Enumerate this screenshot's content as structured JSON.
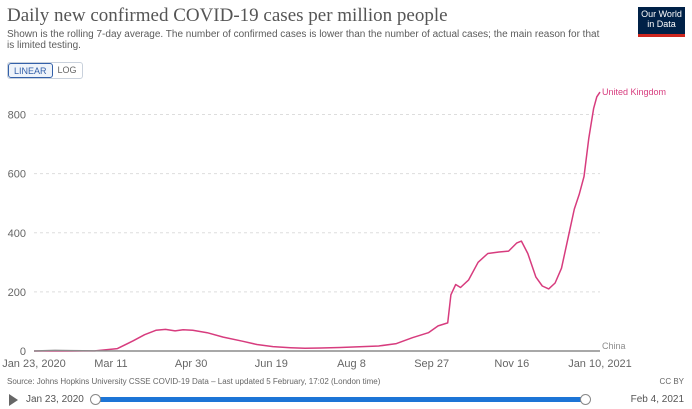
{
  "header": {
    "title": "Daily new confirmed COVID-19 cases per million people",
    "subtitle": "Shown is the rolling 7-day average. The number of confirmed cases is lower than the number of actual cases; the main reason for that is limited testing.",
    "logo_line1": "Our World",
    "logo_line2": "in Data"
  },
  "scale_toggle": {
    "linear_label": "LINEAR",
    "log_label": "LOG",
    "selected": "LINEAR"
  },
  "chart_data": {
    "type": "line",
    "ylim": [
      0,
      900
    ],
    "y_ticks": [
      0,
      200,
      400,
      600,
      800
    ],
    "x_range": [
      "2020-01-23",
      "2021-02-04"
    ],
    "x_ticks": [
      "Jan 23, 2020",
      "Mar 11",
      "Apr 30",
      "Jun 19",
      "Aug 8",
      "Sep 27",
      "Nov 16",
      "Jan 10, 2021"
    ],
    "grid": "horizontal",
    "series": [
      {
        "name": "United Kingdom",
        "color": "#d73c7e",
        "points": [
          [
            "2020-01-23",
            0
          ],
          [
            "2020-02-15",
            0
          ],
          [
            "2020-03-01",
            0.5
          ],
          [
            "2020-03-15",
            8
          ],
          [
            "2020-03-25",
            35
          ],
          [
            "2020-04-01",
            55
          ],
          [
            "2020-04-08",
            70
          ],
          [
            "2020-04-14",
            73
          ],
          [
            "2020-04-20",
            68
          ],
          [
            "2020-04-25",
            72
          ],
          [
            "2020-05-01",
            70
          ],
          [
            "2020-05-10",
            62
          ],
          [
            "2020-05-20",
            47
          ],
          [
            "2020-06-01",
            33
          ],
          [
            "2020-06-10",
            22
          ],
          [
            "2020-06-20",
            15
          ],
          [
            "2020-07-01",
            11
          ],
          [
            "2020-07-10",
            9
          ],
          [
            "2020-07-20",
            10
          ],
          [
            "2020-08-01",
            12
          ],
          [
            "2020-08-15",
            15
          ],
          [
            "2020-08-25",
            17
          ],
          [
            "2020-09-05",
            25
          ],
          [
            "2020-09-15",
            45
          ],
          [
            "2020-09-25",
            62
          ],
          [
            "2020-10-01",
            85
          ],
          [
            "2020-10-07",
            95
          ],
          [
            "2020-10-09",
            190
          ],
          [
            "2020-10-12",
            225
          ],
          [
            "2020-10-15",
            215
          ],
          [
            "2020-10-20",
            240
          ],
          [
            "2020-10-26",
            300
          ],
          [
            "2020-11-01",
            330
          ],
          [
            "2020-11-08",
            335
          ],
          [
            "2020-11-14",
            338
          ],
          [
            "2020-11-19",
            365
          ],
          [
            "2020-11-22",
            372
          ],
          [
            "2020-11-26",
            330
          ],
          [
            "2020-12-01",
            250
          ],
          [
            "2020-12-05",
            220
          ],
          [
            "2020-12-09",
            210
          ],
          [
            "2020-12-13",
            230
          ],
          [
            "2020-12-17",
            280
          ],
          [
            "2020-12-21",
            380
          ],
          [
            "2020-12-25",
            480
          ],
          [
            "2020-12-28",
            530
          ],
          [
            "2020-12-31",
            590
          ],
          [
            "2021-01-03",
            720
          ],
          [
            "2021-01-06",
            820
          ],
          [
            "2021-01-08",
            860
          ],
          [
            "2021-01-10",
            876
          ]
        ]
      },
      {
        "name": "China",
        "color": "#8c8c8c",
        "points": [
          [
            "2020-01-23",
            0.1
          ],
          [
            "2020-02-05",
            2
          ],
          [
            "2020-02-15",
            1.5
          ],
          [
            "2020-03-01",
            0.3
          ],
          [
            "2020-04-01",
            0.1
          ],
          [
            "2021-01-10",
            0.1
          ]
        ]
      }
    ]
  },
  "footer": {
    "source": "Source: Johns Hopkins University CSSE COVID-19 Data – Last updated 5 February, 17:02 (London time)",
    "license": "CC BY"
  },
  "timeline": {
    "start_label": "Jan 23, 2020",
    "end_label": "Feb 4, 2021",
    "track_color": "#1d75d6"
  }
}
